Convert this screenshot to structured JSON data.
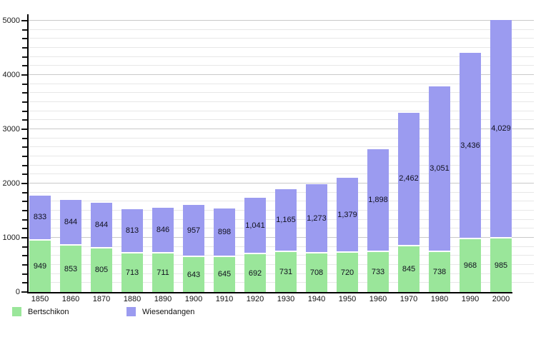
{
  "chart_data": {
    "type": "bar",
    "stacked": true,
    "title": "",
    "xlabel": "",
    "ylabel": "",
    "categories": [
      "1850",
      "1860",
      "1870",
      "1880",
      "1890",
      "1900",
      "1910",
      "1920",
      "1930",
      "1940",
      "1950",
      "1960",
      "1970",
      "1980",
      "1990",
      "2000"
    ],
    "series": [
      {
        "name": "Bertschikon",
        "color": "#9ae69a",
        "values": [
          949,
          853,
          805,
          713,
          711,
          643,
          645,
          692,
          731,
          708,
          720,
          733,
          845,
          738,
          968,
          985
        ]
      },
      {
        "name": "Wiesendangen",
        "color": "#9b9bf0",
        "values": [
          833,
          844,
          844,
          813,
          846,
          957,
          898,
          1041,
          1165,
          1273,
          1379,
          1898,
          2462,
          3051,
          3436,
          4029
        ]
      }
    ],
    "ylim": [
      0,
      5000
    ],
    "y_major_ticks": [
      0,
      1000,
      2000,
      3000,
      4000,
      5000
    ],
    "y_minor_divisions_per_major": 6,
    "grid": "on",
    "legend_position": "bottom-left",
    "value_label_style": "centered inside each segment, thousands comma separator"
  },
  "legend": {
    "items": [
      {
        "label": "Bertschikon",
        "color": "#9ae69a"
      },
      {
        "label": "Wiesendangen",
        "color": "#9b9bf0"
      }
    ]
  },
  "colors": {
    "background": "#ffffff",
    "grid_minor": "#e7e7e7",
    "grid_major": "#c9c9c9",
    "axis": "#000000",
    "label_text": "#10101e"
  }
}
